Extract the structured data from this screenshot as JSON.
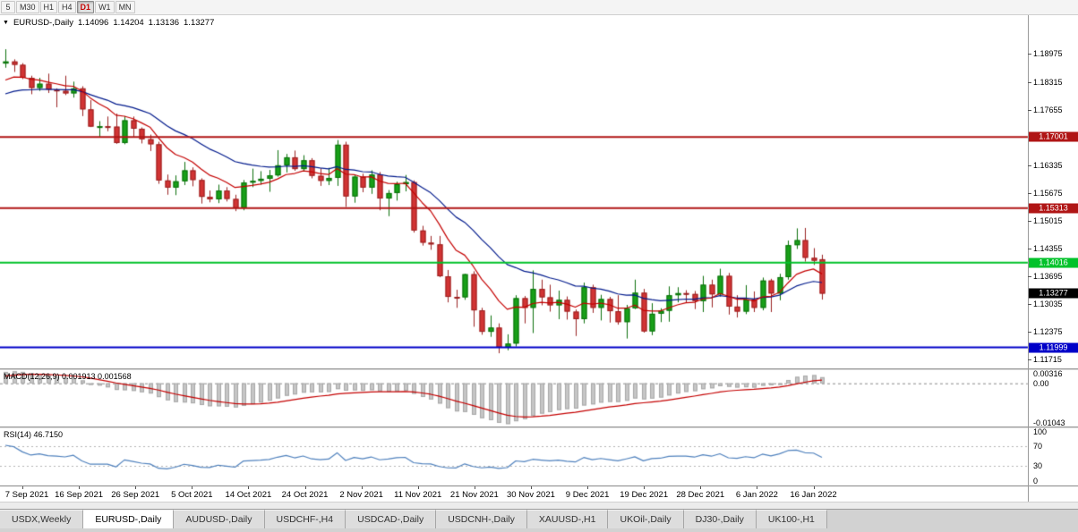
{
  "toolbar": {
    "timeframes": [
      {
        "label": "5",
        "active": false
      },
      {
        "label": "M30",
        "active": false
      },
      {
        "label": "H1",
        "active": false
      },
      {
        "label": "H4",
        "active": false
      },
      {
        "label": "D1",
        "active": true
      },
      {
        "label": "W1",
        "active": false
      },
      {
        "label": "MN",
        "active": false
      }
    ]
  },
  "chart": {
    "title": {
      "symbol": "EURUSD-,Daily",
      "open": "1.14096",
      "high": "1.14204",
      "low": "1.13136",
      "close": "1.13277"
    },
    "colors": {
      "up": "#18a018",
      "up_border": "#0b6f0b",
      "down": "#d23434",
      "down_border": "#992121",
      "ma_fast": "#c40000",
      "ma_slow": "#001a8c",
      "macd_bar": "#c6c6c6",
      "macd_bar_border": "#a8a8a8",
      "macd_signal": "#c40000",
      "rsi_line": "#4f81bd"
    },
    "y_axis": {
      "price_top": 1.199,
      "price_bottom": 1.115,
      "labels": [
        "1.18975",
        "1.18315",
        "1.17655",
        "1.16335",
        "1.15675",
        "1.15015",
        "1.14355",
        "1.13695",
        "1.13035",
        "1.12375",
        "1.11715"
      ]
    },
    "hlines": [
      {
        "price": 1.17001,
        "label": "1.17001",
        "color": "#b01515",
        "width": 2
      },
      {
        "price": 1.15313,
        "label": "1.15313",
        "color": "#b01515",
        "width": 2
      },
      {
        "price": 1.14016,
        "label": "1.14016",
        "color": "#00c22a",
        "width": 2
      },
      {
        "price": 1.11999,
        "label": "1.11999",
        "color": "#0000c8",
        "width": 2
      }
    ],
    "current_price": {
      "price": 1.13277,
      "label": "1.13277",
      "badge_color": "#000000"
    },
    "x_axis_labels": [
      "7 Sep 2021",
      "16 Sep 2021",
      "26 Sep 2021",
      "5 Oct 2021",
      "14 Oct 2021",
      "24 Oct 2021",
      "2 Nov 2021",
      "11 Nov 2021",
      "21 Nov 2021",
      "30 Nov 2021",
      "9 Dec 2021",
      "19 Dec 2021",
      "28 Dec 2021",
      "6 Jan 2022",
      "16 Jan 2022"
    ]
  },
  "indicators": {
    "macd": {
      "label": "MACD(12,26,9) 0.001913 0.001568",
      "params": {
        "fast": 12,
        "slow": 26,
        "signal": 9
      },
      "axis_labels": [
        {
          "text": "0.00316",
          "value": 0.00316
        },
        {
          "text": "0.00",
          "value": 0
        },
        {
          "text": "-0.01043",
          "value": -0.01043
        }
      ]
    },
    "rsi": {
      "label": "RSI(14) 46.7150",
      "period": 14,
      "levels": [
        70,
        30
      ],
      "axis_labels": [
        {
          "text": "100",
          "value": 100
        },
        {
          "text": "70",
          "value": 70
        },
        {
          "text": "30",
          "value": 30
        },
        {
          "text": "0",
          "value": 0
        }
      ]
    }
  },
  "tabs": [
    {
      "label": "USDX,Weekly",
      "active": false
    },
    {
      "label": "EURUSD-,Daily",
      "active": true
    },
    {
      "label": "AUDUSD-,Daily",
      "active": false
    },
    {
      "label": "USDCHF-,H4",
      "active": false
    },
    {
      "label": "USDCAD-,Daily",
      "active": false
    },
    {
      "label": "USDCNH-,Daily",
      "active": false
    },
    {
      "label": "XAUUSD-,H1",
      "active": false
    },
    {
      "label": "UKOil-,Daily",
      "active": false
    },
    {
      "label": "DJ30-,Daily",
      "active": false
    },
    {
      "label": "UK100-,H1",
      "active": false
    }
  ],
  "chart_data": {
    "type": "candlestick",
    "symbol": "EURUSD",
    "timeframe": "Daily",
    "pre_closes": [
      1.1772,
      1.1776,
      1.177,
      1.1764,
      1.1756,
      1.1748,
      1.174,
      1.1735,
      1.1728,
      1.1722,
      1.173,
      1.1737,
      1.1704,
      1.1698,
      1.1705,
      1.1715,
      1.1748,
      1.1756,
      1.175,
      1.1753,
      1.177,
      1.179,
      1.1806,
      1.182,
      1.1837,
      1.1844,
      1.1829,
      1.1835,
      1.1818,
      1.1874
    ],
    "candles": [
      [
        1.1875,
        1.1909,
        1.1865,
        1.188
      ],
      [
        1.188,
        1.1885,
        1.1855,
        1.1872
      ],
      [
        1.1872,
        1.1876,
        1.1838,
        1.1841
      ],
      [
        1.1841,
        1.1846,
        1.1802,
        1.1817
      ],
      [
        1.1817,
        1.1841,
        1.181,
        1.1827
      ],
      [
        1.1827,
        1.1851,
        1.1805,
        1.1813
      ],
      [
        1.1813,
        1.1816,
        1.1771,
        1.181
      ],
      [
        1.181,
        1.1846,
        1.18,
        1.1804
      ],
      [
        1.1804,
        1.1832,
        1.1794,
        1.1816
      ],
      [
        1.1816,
        1.1821,
        1.175,
        1.1766
      ],
      [
        1.1766,
        1.1788,
        1.1724,
        1.1725
      ],
      [
        1.1725,
        1.1738,
        1.1699,
        1.1726
      ],
      [
        1.1726,
        1.1749,
        1.1714,
        1.1725
      ],
      [
        1.1725,
        1.1756,
        1.1684,
        1.1686
      ],
      [
        1.1686,
        1.175,
        1.1683,
        1.174
      ],
      [
        1.174,
        1.1749,
        1.1701,
        1.172
      ],
      [
        1.172,
        1.1723,
        1.1685,
        1.1695
      ],
      [
        1.1695,
        1.1706,
        1.1667,
        1.1683
      ],
      [
        1.1683,
        1.1689,
        1.1589,
        1.1597
      ],
      [
        1.1597,
        1.1611,
        1.1563,
        1.158
      ],
      [
        1.158,
        1.1609,
        1.1562,
        1.1595
      ],
      [
        1.1595,
        1.1641,
        1.1586,
        1.1621
      ],
      [
        1.1621,
        1.1628,
        1.1583,
        1.1598
      ],
      [
        1.1598,
        1.1602,
        1.1542,
        1.1558
      ],
      [
        1.1558,
        1.1573,
        1.1545,
        1.1552
      ],
      [
        1.1552,
        1.1587,
        1.1543,
        1.1573
      ],
      [
        1.1573,
        1.1581,
        1.1547,
        1.1553
      ],
      [
        1.1553,
        1.1563,
        1.1524,
        1.1531
      ],
      [
        1.1531,
        1.1598,
        1.1526,
        1.1592
      ],
      [
        1.1592,
        1.1625,
        1.1581,
        1.1596
      ],
      [
        1.1596,
        1.1619,
        1.1587,
        1.1601
      ],
      [
        1.1601,
        1.1622,
        1.157,
        1.1609
      ],
      [
        1.1609,
        1.1669,
        1.1606,
        1.1633
      ],
      [
        1.1633,
        1.166,
        1.1616,
        1.1652
      ],
      [
        1.1652,
        1.1668,
        1.162,
        1.1624
      ],
      [
        1.1624,
        1.1657,
        1.1619,
        1.1645
      ],
      [
        1.1645,
        1.165,
        1.1602,
        1.1608
      ],
      [
        1.1608,
        1.1626,
        1.1584,
        1.1596
      ],
      [
        1.1596,
        1.1627,
        1.1586,
        1.1603
      ],
      [
        1.1603,
        1.1693,
        1.1584,
        1.1682
      ],
      [
        1.1682,
        1.1689,
        1.1534,
        1.1559
      ],
      [
        1.1559,
        1.1611,
        1.1544,
        1.1606
      ],
      [
        1.1606,
        1.1613,
        1.1569,
        1.158
      ],
      [
        1.158,
        1.1621,
        1.1565,
        1.1611
      ],
      [
        1.1611,
        1.1617,
        1.1526,
        1.1554
      ],
      [
        1.1554,
        1.1574,
        1.1512,
        1.1567
      ],
      [
        1.1567,
        1.1594,
        1.1549,
        1.1588
      ],
      [
        1.1588,
        1.161,
        1.1571,
        1.1593
      ],
      [
        1.1593,
        1.1597,
        1.1473,
        1.1478
      ],
      [
        1.1478,
        1.1489,
        1.1442,
        1.1449
      ],
      [
        1.1449,
        1.1465,
        1.1432,
        1.1445
      ],
      [
        1.1445,
        1.1465,
        1.1367,
        1.1369
      ],
      [
        1.1369,
        1.1384,
        1.1307,
        1.132
      ],
      [
        1.132,
        1.1337,
        1.1294,
        1.1319
      ],
      [
        1.1319,
        1.1375,
        1.1313,
        1.1374
      ],
      [
        1.1374,
        1.1381,
        1.1249,
        1.1288
      ],
      [
        1.1288,
        1.1294,
        1.123,
        1.1237
      ],
      [
        1.1237,
        1.1276,
        1.1225,
        1.1247
      ],
      [
        1.1247,
        1.1257,
        1.1186,
        1.1199
      ],
      [
        1.1199,
        1.1231,
        1.1193,
        1.1209
      ],
      [
        1.1209,
        1.1324,
        1.1202,
        1.1317
      ],
      [
        1.1317,
        1.1322,
        1.1257,
        1.1294
      ],
      [
        1.1294,
        1.1383,
        1.1234,
        1.1339
      ],
      [
        1.1339,
        1.1361,
        1.13,
        1.1319
      ],
      [
        1.1319,
        1.1349,
        1.1285,
        1.13
      ],
      [
        1.13,
        1.1335,
        1.1267,
        1.1313
      ],
      [
        1.1313,
        1.1321,
        1.1266,
        1.1285
      ],
      [
        1.1285,
        1.129,
        1.1227,
        1.1267
      ],
      [
        1.1267,
        1.1354,
        1.1257,
        1.1343
      ],
      [
        1.1343,
        1.1349,
        1.1282,
        1.1294
      ],
      [
        1.1294,
        1.1325,
        1.1264,
        1.1315
      ],
      [
        1.1315,
        1.132,
        1.1259,
        1.1286
      ],
      [
        1.1286,
        1.1324,
        1.1254,
        1.126
      ],
      [
        1.126,
        1.1301,
        1.1221,
        1.1293
      ],
      [
        1.1293,
        1.1361,
        1.1291,
        1.133
      ],
      [
        1.133,
        1.1339,
        1.1235,
        1.1238
      ],
      [
        1.1238,
        1.1305,
        1.1229,
        1.128
      ],
      [
        1.128,
        1.1293,
        1.126,
        1.1287
      ],
      [
        1.1287,
        1.1345,
        1.1261,
        1.1324
      ],
      [
        1.1324,
        1.1343,
        1.1307,
        1.1329
      ],
      [
        1.1329,
        1.1336,
        1.1307,
        1.1327
      ],
      [
        1.1327,
        1.1334,
        1.1291,
        1.131
      ],
      [
        1.131,
        1.137,
        1.1284,
        1.1349
      ],
      [
        1.1349,
        1.1361,
        1.1295,
        1.1326
      ],
      [
        1.1326,
        1.1387,
        1.1321,
        1.137
      ],
      [
        1.137,
        1.1377,
        1.1278,
        1.1297
      ],
      [
        1.1297,
        1.1324,
        1.1271,
        1.1285
      ],
      [
        1.1285,
        1.1348,
        1.1279,
        1.1314
      ],
      [
        1.1314,
        1.1333,
        1.1284,
        1.1294
      ],
      [
        1.1294,
        1.1366,
        1.1288,
        1.1359
      ],
      [
        1.1359,
        1.1363,
        1.1284,
        1.1328
      ],
      [
        1.1328,
        1.1375,
        1.1312,
        1.1367
      ],
      [
        1.1367,
        1.1454,
        1.1361,
        1.1443
      ],
      [
        1.1443,
        1.1483,
        1.1434,
        1.1455
      ],
      [
        1.1455,
        1.1484,
        1.1404,
        1.1413
      ],
      [
        1.1413,
        1.1436,
        1.1396,
        1.1406
      ],
      [
        1.14096,
        1.14204,
        1.13136,
        1.13277
      ]
    ]
  }
}
